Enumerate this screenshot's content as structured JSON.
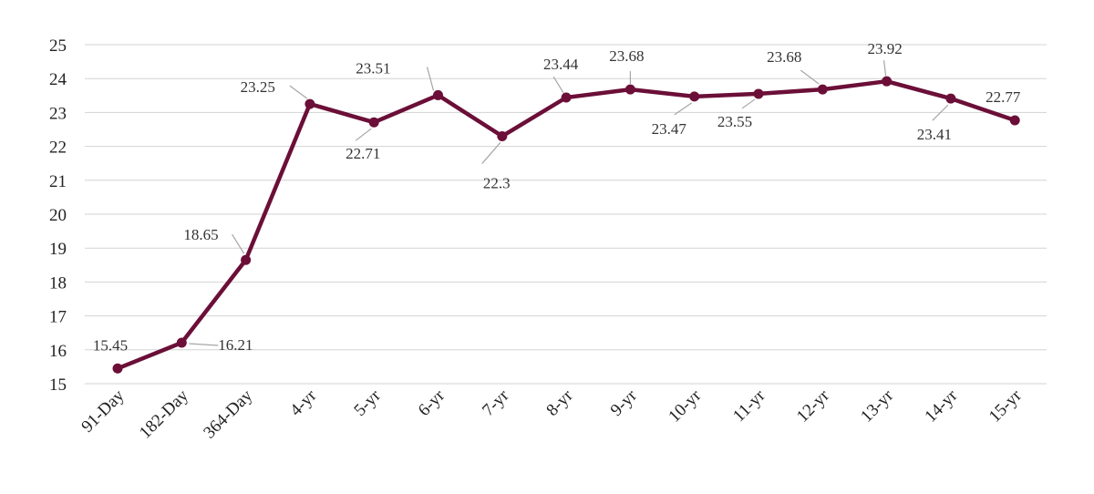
{
  "chart_data": {
    "type": "line",
    "categories": [
      "91-Day",
      "182-Day",
      "364-Day",
      "4-yr",
      "5-yr",
      "6-yr",
      "7-yr",
      "8-yr",
      "9-yr",
      "10-yr",
      "11-yr",
      "12-yr",
      "13-yr",
      "14-yr",
      "15-yr"
    ],
    "series": [
      {
        "values": [
          15.45,
          16.21,
          18.65,
          23.25,
          22.71,
          23.51,
          22.3,
          23.44,
          23.68,
          23.47,
          23.55,
          23.68,
          23.92,
          23.41,
          22.77
        ],
        "data_labels": [
          "15.45",
          "16.21",
          "18.65",
          "23.25",
          "22.71",
          "23.51",
          "22.3",
          "23.44",
          "23.68",
          "23.47",
          "23.55",
          "23.68",
          "23.92",
          "23.41",
          "22.77"
        ],
        "color": "#6b0f38"
      }
    ],
    "ylim": [
      15,
      25
    ],
    "yticks": [
      "15",
      "16",
      "17",
      "18",
      "19",
      "20",
      "21",
      "22",
      "23",
      "24",
      "25"
    ],
    "grid": true,
    "legend": "none",
    "title": "",
    "xlabel": "",
    "ylabel": ""
  }
}
